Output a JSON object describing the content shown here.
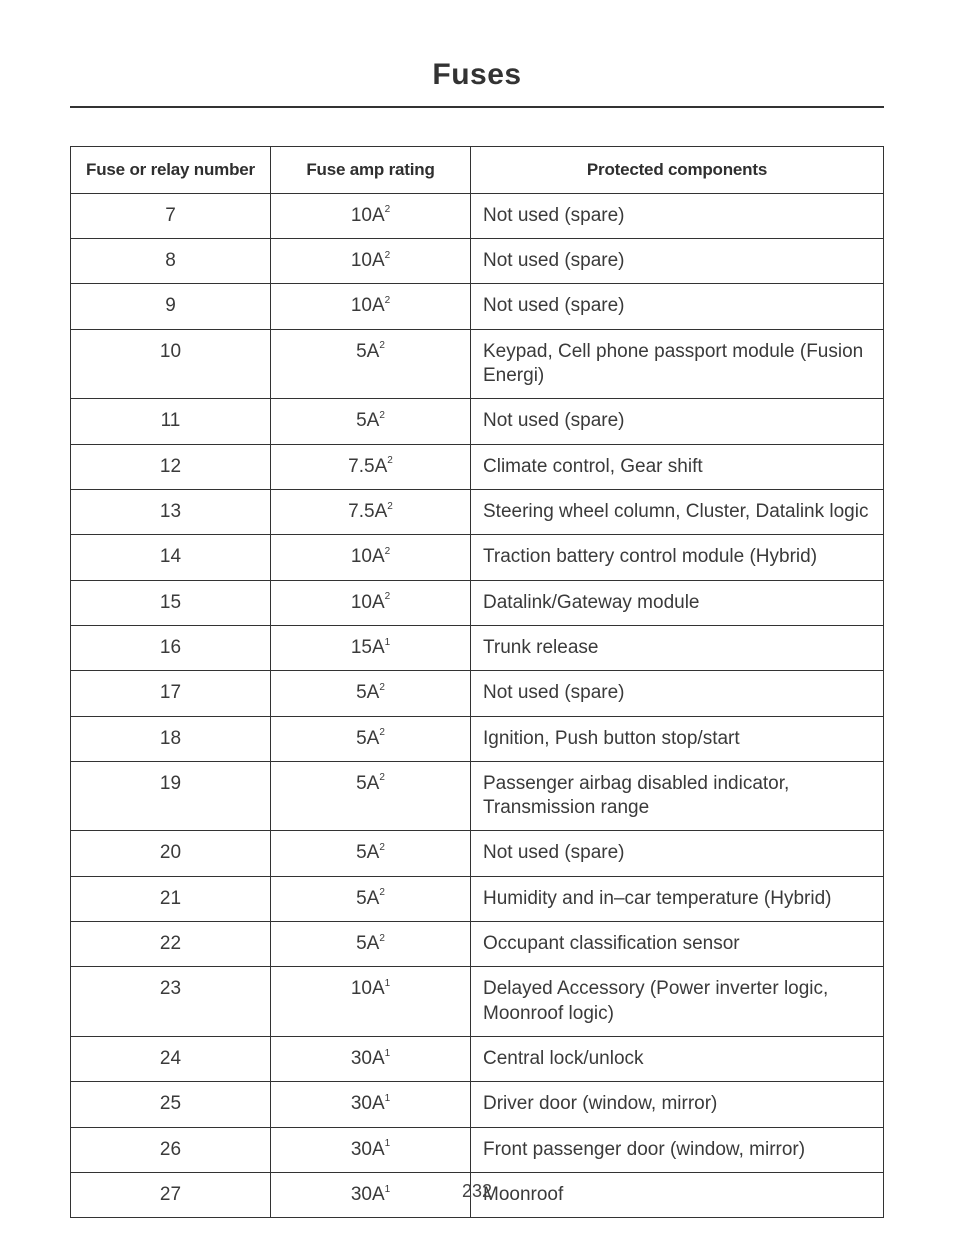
{
  "page": {
    "title": "Fuses",
    "number": "232"
  },
  "table": {
    "columns": [
      "Fuse or relay number",
      "Fuse amp rating",
      "Protected components"
    ],
    "rows": [
      {
        "num": "7",
        "amp": "10A",
        "sup": "2",
        "comp": "Not used (spare)"
      },
      {
        "num": "8",
        "amp": "10A",
        "sup": "2",
        "comp": "Not used (spare)"
      },
      {
        "num": "9",
        "amp": "10A",
        "sup": "2",
        "comp": "Not used (spare)"
      },
      {
        "num": "10",
        "amp": "5A",
        "sup": "2",
        "comp": "Keypad, Cell phone passport module (Fusion Energi)"
      },
      {
        "num": "11",
        "amp": "5A",
        "sup": "2",
        "comp": "Not used (spare)"
      },
      {
        "num": "12",
        "amp": "7.5A",
        "sup": "2",
        "comp": "Climate control, Gear shift"
      },
      {
        "num": "13",
        "amp": "7.5A",
        "sup": "2",
        "comp": "Steering wheel column, Cluster, Datalink logic"
      },
      {
        "num": "14",
        "amp": "10A",
        "sup": "2",
        "comp": "Traction battery control module (Hybrid)"
      },
      {
        "num": "15",
        "amp": "10A",
        "sup": "2",
        "comp": "Datalink/Gateway module"
      },
      {
        "num": "16",
        "amp": "15A",
        "sup": "1",
        "comp": "Trunk release"
      },
      {
        "num": "17",
        "amp": "5A",
        "sup": "2",
        "comp": "Not used (spare)"
      },
      {
        "num": "18",
        "amp": "5A",
        "sup": "2",
        "comp": "Ignition, Push button stop/start"
      },
      {
        "num": "19",
        "amp": "5A",
        "sup": "2",
        "comp": "Passenger airbag disabled indicator, Transmission range"
      },
      {
        "num": "20",
        "amp": "5A",
        "sup": "2",
        "comp": "Not used (spare)"
      },
      {
        "num": "21",
        "amp": "5A",
        "sup": "2",
        "comp": "Humidity and in–car temperature (Hybrid)"
      },
      {
        "num": "22",
        "amp": "5A",
        "sup": "2",
        "comp": "Occupant classification sensor"
      },
      {
        "num": "23",
        "amp": "10A",
        "sup": "1",
        "comp": "Delayed Accessory (Power inverter logic, Moonroof logic)"
      },
      {
        "num": "24",
        "amp": "30A",
        "sup": "1",
        "comp": "Central lock/unlock"
      },
      {
        "num": "25",
        "amp": "30A",
        "sup": "1",
        "comp": "Driver door (window, mirror)"
      },
      {
        "num": "26",
        "amp": "30A",
        "sup": "1",
        "comp": "Front passenger door (window, mirror)"
      },
      {
        "num": "27",
        "amp": "30A",
        "sup": "1",
        "comp": "Moonroof"
      }
    ]
  }
}
